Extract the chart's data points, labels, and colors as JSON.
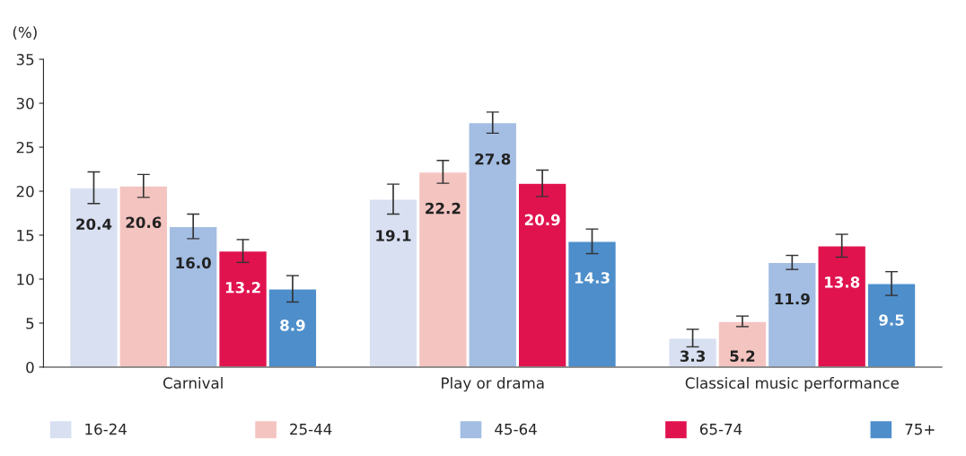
{
  "chart_data": {
    "type": "bar",
    "ylabel": "(%)",
    "categories": [
      "Carnival",
      "Play or drama",
      "Classical music performance"
    ],
    "series": [
      {
        "name": "16-24",
        "color": "#d9e0f2",
        "values": [
          20.4,
          19.1,
          3.3
        ],
        "errors": [
          1.8,
          1.7,
          1.0
        ],
        "value_labels": [
          "20.4",
          "19.1",
          "3.3"
        ]
      },
      {
        "name": "25-44",
        "color": "#f4c4c0",
        "values": [
          20.6,
          22.2,
          5.2
        ],
        "errors": [
          1.3,
          1.3,
          0.6
        ],
        "value_labels": [
          "20.6",
          "22.2",
          "5.2"
        ]
      },
      {
        "name": "45-64",
        "color": "#a3bde3",
        "values": [
          16.0,
          27.8,
          11.9
        ],
        "errors": [
          1.4,
          1.2,
          0.8
        ],
        "value_labels": [
          "16.0",
          "27.8",
          "11.9"
        ]
      },
      {
        "name": "65-74",
        "color": "#e0134f",
        "values": [
          13.2,
          20.9,
          13.8
        ],
        "errors": [
          1.3,
          1.5,
          1.3
        ],
        "value_labels": [
          "13.2",
          "20.9",
          "13.8"
        ]
      },
      {
        "name": "75+",
        "color": "#4d8ecb",
        "values": [
          8.9,
          14.3,
          9.5
        ],
        "errors": [
          1.5,
          1.4,
          1.35
        ],
        "value_labels": [
          "8.9",
          "14.3",
          "9.5"
        ]
      }
    ],
    "ylim": [
      0,
      35
    ],
    "yticks": [
      0,
      5,
      10,
      15,
      20,
      25,
      30,
      35
    ],
    "legend": "bottom",
    "grid": false
  }
}
